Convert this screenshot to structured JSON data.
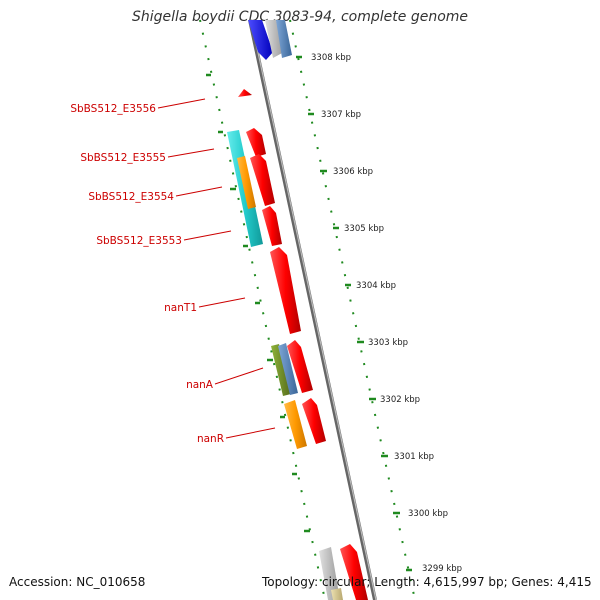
{
  "title": "Shigella boydii CDC 3083-94, complete genome",
  "accession": "Accession: NC_010658",
  "topology": "Topology: circular; Length: 4,615,997 bp; Genes: 4,415",
  "ticks": [
    "3308 kbp",
    "3307 kbp",
    "3306 kbp",
    "3305 kbp",
    "3304 kbp",
    "3303 kbp",
    "3302 kbp",
    "3301 kbp",
    "3300 kbp",
    "3299 kbp"
  ],
  "gene_labels": [
    "SbBS512_E3556",
    "SbBS512_E3555",
    "SbBS512_E3554",
    "SbBS512_E3553",
    "nanT1",
    "nanA",
    "nanR"
  ],
  "colors": {
    "backbone": "#888888",
    "label": "#cc0000",
    "tick_dots": "#1f8a1f",
    "gene_red": "#ff0000",
    "gene_cyan": "#22cccc",
    "gene_orange": "#ff9900",
    "gene_olive": "#6b8e23",
    "gene_steelblue": "#4f81bd",
    "gene_blue": "#0000ff",
    "gene_gray": "#bbbbbb"
  }
}
